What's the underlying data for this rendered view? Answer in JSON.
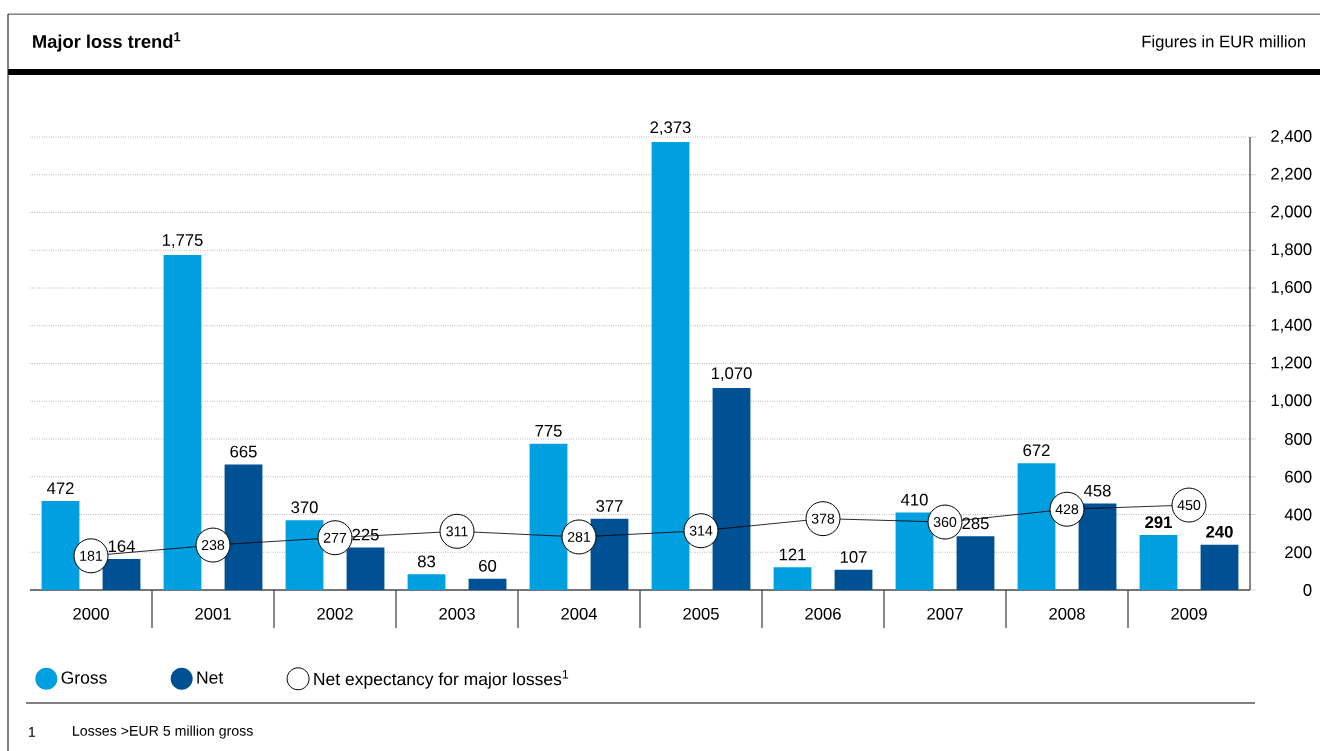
{
  "chart_data": {
    "type": "bar",
    "title": "Major loss trend$^{1}$",
    "subtitle": "Figures in EUR million",
    "categories": [
      "2000",
      "2001",
      "2002",
      "2003",
      "2004",
      "2005",
      "2006",
      "2007",
      "2008",
      "2009"
    ],
    "series": [
      {
        "name": "Gross",
        "color": "#009fe0",
        "values": [
          472,
          1775,
          370,
          83,
          775,
          2373,
          121,
          410,
          672,
          291
        ],
        "value_labels": [
          "472",
          "1,775",
          "370",
          "83",
          "775",
          "2,373",
          "121",
          "410",
          "672",
          "**291**"
        ]
      },
      {
        "name": "Net",
        "color": "#005193",
        "values": [
          164,
          665,
          225,
          60,
          377,
          1070,
          107,
          285,
          458,
          240
        ],
        "value_labels": [
          "164",
          "665",
          "225",
          "60",
          "377",
          "1,070",
          "107",
          "285",
          "458",
          "**240**"
        ]
      },
      {
        "name": "Net expectancy for major losses$^{1}$",
        "type": "line",
        "color": "#000000",
        "marker": "circle",
        "values": [
          181,
          238,
          277,
          311,
          281,
          314,
          378,
          360,
          428,
          450
        ],
        "value_labels": [
          "181",
          "238",
          "277",
          "311",
          "281",
          "314",
          "378",
          "360",
          "428",
          "450"
        ]
      }
    ],
    "ylim": [
      0,
      2400
    ],
    "yticks": [
      0,
      200,
      400,
      600,
      800,
      {
        "value": 1000,
        "label": "1,000"
      },
      {
        "value": 1200,
        "label": "1,200"
      },
      {
        "value": 1400,
        "label": "1,400"
      },
      {
        "value": 1600,
        "label": "1,600"
      },
      {
        "value": 1800,
        "label": "1,800"
      },
      {
        "value": 2000,
        "label": "2,000"
      },
      {
        "value": 2200,
        "label": "2,200"
      },
      {
        "value": 2400,
        "label": "2,400"
      }
    ],
    "grid": "y",
    "legend": "bottom left",
    "annotations": [
      "1",
      "Losses >EUR 5 million gross"
    ]
  }
}
